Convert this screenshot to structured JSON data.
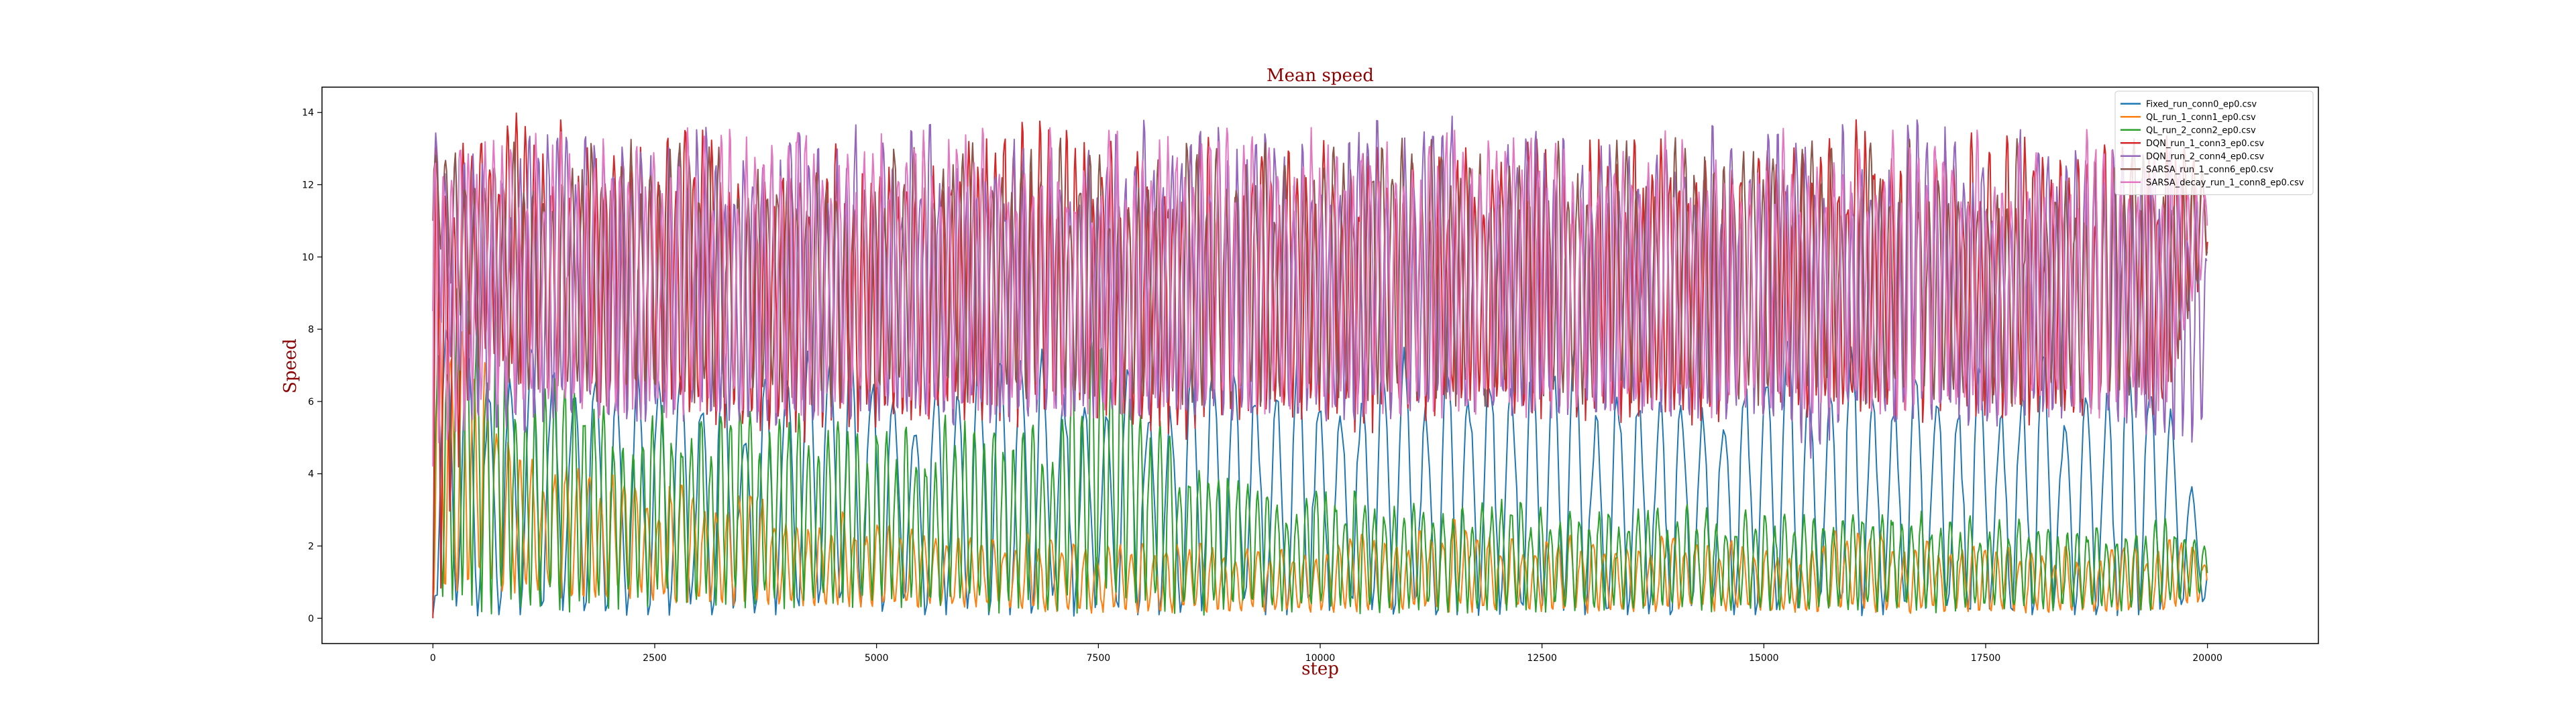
{
  "chart_data": {
    "type": "line",
    "title": "Mean speed",
    "xlabel": "step",
    "ylabel": "Speed",
    "xlim": [
      -1250,
      21250
    ],
    "ylim": [
      -0.7,
      14.7
    ],
    "xticks": [
      0,
      2500,
      5000,
      7500,
      10000,
      12500,
      15000,
      17500,
      20000
    ],
    "yticks": [
      0,
      2,
      4,
      6,
      8,
      10,
      12,
      14
    ],
    "grid": false,
    "legend_position": "top-right",
    "colors": {
      "title": "#8b0000",
      "axis_label": "#8b0000"
    },
    "series": [
      {
        "name": "Fixed_run_conn0_ep0.csv",
        "color": "#1f77b4",
        "approx_period_steps": 240,
        "x": [
          0,
          500,
          1000,
          1500,
          2000,
          2500,
          3000,
          3500,
          4000,
          4500,
          5000,
          5500,
          6000,
          6500,
          7000,
          7500,
          8000,
          8500,
          9000,
          9500,
          10000,
          10500,
          11000,
          11500,
          12000,
          12500,
          13000,
          13500,
          14000,
          14500,
          15000,
          15500,
          16000,
          16500,
          17000,
          17500,
          18000,
          18500,
          19000,
          19500,
          20000
        ],
        "max": [
          9.2,
          7.0,
          7.5,
          7.2,
          7.0,
          7.5,
          7.5,
          7.2,
          7.5,
          7.5,
          7.5,
          7.5,
          7.8,
          7.5,
          7.5,
          7.5,
          7.8,
          7.5,
          7.5,
          7.5,
          7.5,
          7.5,
          7.5,
          7.5,
          7.8,
          7.5,
          7.5,
          7.5,
          7.5,
          7.5,
          7.5,
          7.8,
          7.5,
          7.5,
          7.5,
          7.5,
          7.5,
          7.5,
          7.5,
          7.5,
          2.0
        ],
        "min": [
          0.1,
          0.1,
          0.1,
          0.1,
          0.1,
          0.1,
          0.1,
          0.1,
          0.1,
          0.1,
          0.1,
          0.1,
          0.1,
          0.1,
          0.1,
          0.1,
          0.1,
          0.1,
          0.1,
          0.1,
          0.1,
          0.1,
          0.1,
          0.1,
          0.1,
          0.1,
          0.1,
          0.1,
          0.1,
          0.1,
          0.1,
          0.1,
          0.1,
          0.1,
          0.1,
          0.1,
          0.1,
          0.1,
          0.1,
          0.1,
          0.5
        ]
      },
      {
        "name": "QL_run_1_conn1_ep0.csv",
        "color": "#ff7f0e",
        "approx_period_steps": 130,
        "x": [
          0,
          500,
          1000,
          1500,
          2000,
          2500,
          3000,
          3500,
          4000,
          4500,
          5000,
          5500,
          6000,
          6500,
          7000,
          7500,
          8000,
          8500,
          9000,
          9500,
          10000,
          10500,
          11000,
          11500,
          12000,
          12500,
          13000,
          13500,
          14000,
          14500,
          15000,
          15500,
          16000,
          16500,
          17000,
          17500,
          18000,
          18500,
          19000,
          19500,
          20000
        ],
        "max": [
          9.5,
          7.5,
          5.0,
          4.2,
          4.0,
          3.8,
          3.6,
          3.5,
          3.2,
          3.0,
          2.8,
          2.7,
          2.5,
          2.4,
          2.3,
          2.2,
          2.2,
          2.1,
          2.0,
          2.0,
          2.0,
          2.6,
          2.4,
          2.8,
          2.2,
          2.5,
          2.3,
          2.0,
          2.6,
          2.2,
          2.0,
          2.0,
          3.0,
          2.4,
          2.0,
          2.3,
          2.0,
          2.0,
          2.0,
          2.2,
          2.0
        ],
        "min": [
          0.4,
          0.8,
          0.8,
          0.6,
          0.6,
          0.5,
          0.5,
          0.4,
          0.4,
          0.4,
          0.3,
          0.3,
          0.3,
          0.3,
          0.2,
          0.2,
          0.2,
          0.2,
          0.2,
          0.2,
          0.2,
          0.2,
          0.2,
          0.2,
          0.2,
          0.2,
          0.2,
          0.2,
          0.2,
          0.2,
          0.2,
          0.2,
          0.2,
          0.2,
          0.2,
          0.2,
          0.2,
          0.2,
          0.2,
          0.2,
          0.5
        ]
      },
      {
        "name": "QL_run_2_conn2_ep0.csv",
        "color": "#2ca02c",
        "approx_period_steps": 110,
        "x": [
          0,
          500,
          1000,
          1500,
          2000,
          2500,
          3000,
          3500,
          4000,
          4500,
          5000,
          5500,
          6000,
          6500,
          7000,
          7500,
          8000,
          8500,
          9000,
          9500,
          10000,
          10500,
          11000,
          11500,
          12000,
          12500,
          13000,
          13500,
          14000,
          14500,
          15000,
          15500,
          16000,
          16500,
          17000,
          17500,
          18000,
          18500,
          19000,
          19500,
          20000
        ],
        "max": [
          9.0,
          9.5,
          7.0,
          6.5,
          6.2,
          6.0,
          6.0,
          5.8,
          6.5,
          5.5,
          5.6,
          5.4,
          5.8,
          5.5,
          5.2,
          9.3,
          6.0,
          5.0,
          4.2,
          3.6,
          3.8,
          3.5,
          3.2,
          3.0,
          3.3,
          3.2,
          3.0,
          3.0,
          3.2,
          3.0,
          3.0,
          3.2,
          3.0,
          3.0,
          3.0,
          2.8,
          3.0,
          2.8,
          2.8,
          2.8,
          2.0
        ],
        "min": [
          0.5,
          0.5,
          0.5,
          0.5,
          0.5,
          0.6,
          0.6,
          0.5,
          0.6,
          0.5,
          0.5,
          0.4,
          0.4,
          0.4,
          0.4,
          0.4,
          0.4,
          0.3,
          0.3,
          0.3,
          0.3,
          0.3,
          0.3,
          0.3,
          0.3,
          0.3,
          0.3,
          0.3,
          0.3,
          0.3,
          0.3,
          0.3,
          0.3,
          0.3,
          0.3,
          0.3,
          0.3,
          0.3,
          0.3,
          0.3,
          0.8
        ]
      },
      {
        "name": "DQN_run_1_conn3_ep0.csv",
        "color": "#d62728",
        "approx_period_steps": 100,
        "x": [
          0,
          500,
          1000,
          1500,
          2000,
          2500,
          3000,
          3500,
          4000,
          4500,
          5000,
          5500,
          6000,
          6500,
          7000,
          7500,
          8000,
          8500,
          9000,
          9500,
          10000,
          10500,
          11000,
          11500,
          12000,
          12500,
          13000,
          13500,
          14000,
          14500,
          15000,
          15500,
          16000,
          16500,
          17000,
          17500,
          18000,
          18500,
          19000,
          19500,
          20000
        ],
        "max": [
          13.9,
          13.3,
          14.1,
          13.8,
          13.6,
          13.5,
          13.5,
          13.6,
          13.4,
          13.4,
          13.3,
          13.5,
          13.6,
          14.1,
          13.6,
          13.3,
          13.5,
          13.4,
          13.5,
          13.4,
          13.6,
          13.4,
          13.5,
          13.4,
          13.5,
          13.4,
          13.4,
          13.5,
          13.4,
          13.4,
          13.5,
          13.4,
          14.0,
          13.8,
          13.5,
          13.4,
          13.3,
          13.5,
          13.4,
          13.4,
          12.9
        ],
        "min": [
          0.0,
          7.8,
          6.8,
          6.5,
          6.2,
          6.2,
          5.6,
          5.5,
          5.2,
          5.4,
          5.6,
          5.6,
          5.8,
          5.4,
          6.0,
          5.8,
          5.6,
          5.2,
          5.8,
          5.6,
          5.9,
          5.4,
          5.6,
          6.1,
          5.8,
          5.8,
          5.6,
          5.8,
          5.4,
          5.8,
          5.9,
          5.6,
          5.8,
          5.8,
          5.8,
          5.9,
          5.6,
          5.6,
          5.9,
          5.6,
          10.2
        ]
      },
      {
        "name": "DQN_run_2_conn4_ep0.csv",
        "color": "#9467bd",
        "approx_period_steps": 105,
        "x": [
          0,
          500,
          1000,
          1500,
          2000,
          2500,
          3000,
          3500,
          4000,
          4500,
          5000,
          5500,
          6000,
          6500,
          7000,
          7500,
          8000,
          8500,
          9000,
          9500,
          10000,
          10500,
          11000,
          11500,
          12000,
          12500,
          13000,
          13500,
          14000,
          14500,
          15000,
          15500,
          16000,
          16500,
          17000,
          17500,
          18000,
          18500,
          19000,
          19500,
          20000
        ],
        "max": [
          13.6,
          13.4,
          13.5,
          13.7,
          13.8,
          13.6,
          13.6,
          13.5,
          13.7,
          13.6,
          13.7,
          13.6,
          13.9,
          13.6,
          13.7,
          13.6,
          14.0,
          13.6,
          13.7,
          13.8,
          13.7,
          13.8,
          13.7,
          13.9,
          13.6,
          13.8,
          13.6,
          13.7,
          13.8,
          13.6,
          13.7,
          13.6,
          13.8,
          13.7,
          13.9,
          13.6,
          13.5,
          13.5,
          13.5,
          13.4,
          11.0
        ],
        "min": [
          8.5,
          5.5,
          5.2,
          5.6,
          5.5,
          5.4,
          5.6,
          5.5,
          5.4,
          5.6,
          5.5,
          5.6,
          5.4,
          5.5,
          5.8,
          5.6,
          5.5,
          5.6,
          5.5,
          5.8,
          5.6,
          5.5,
          5.8,
          5.6,
          5.7,
          5.6,
          5.5,
          5.8,
          5.6,
          5.5,
          5.8,
          4.4,
          5.6,
          5.5,
          5.6,
          5.4,
          5.5,
          5.6,
          5.5,
          5.0,
          4.9
        ]
      },
      {
        "name": "SARSA_run_1_conn6_ep0.csv",
        "color": "#8c564b",
        "approx_period_steps": 110,
        "x": [
          0,
          500,
          1000,
          1500,
          2000,
          2500,
          3000,
          3500,
          4000,
          4500,
          5000,
          5500,
          6000,
          6500,
          7000,
          7500,
          8000,
          8500,
          9000,
          9500,
          10000,
          10500,
          11000,
          11500,
          12000,
          12500,
          13000,
          13500,
          14000,
          14500,
          15000,
          15500,
          16000,
          16500,
          17000,
          17500,
          18000,
          18500,
          19000,
          19500,
          20000
        ],
        "max": [
          13.0,
          13.2,
          13.3,
          13.4,
          13.3,
          13.2,
          13.3,
          13.2,
          13.3,
          13.2,
          13.3,
          13.2,
          13.3,
          13.2,
          13.3,
          13.2,
          13.3,
          13.2,
          13.3,
          13.2,
          13.3,
          13.2,
          13.3,
          13.2,
          13.3,
          13.2,
          13.3,
          13.2,
          13.3,
          13.2,
          13.3,
          13.2,
          13.3,
          13.2,
          13.3,
          13.2,
          13.3,
          13.2,
          13.3,
          13.2,
          12.5
        ],
        "min": [
          11.0,
          6.8,
          6.4,
          6.4,
          6.2,
          6.2,
          6.2,
          6.2,
          6.2,
          6.2,
          6.2,
          6.2,
          6.2,
          6.2,
          6.2,
          6.2,
          6.2,
          6.2,
          6.2,
          6.2,
          6.2,
          6.2,
          6.2,
          6.2,
          6.2,
          6.2,
          6.2,
          6.2,
          6.2,
          6.2,
          6.2,
          6.2,
          6.2,
          6.2,
          6.2,
          6.2,
          6.2,
          6.2,
          6.2,
          6.2,
          10.0
        ]
      },
      {
        "name": "SARSA_decay_run_1_conn8_ep0.csv",
        "color": "#e377c2",
        "approx_period_steps": 95,
        "x": [
          0,
          500,
          1000,
          1500,
          2000,
          2500,
          3000,
          3500,
          4000,
          4500,
          5000,
          5500,
          6000,
          6500,
          7000,
          7500,
          8000,
          8500,
          9000,
          9500,
          10000,
          10500,
          11000,
          11500,
          12000,
          12500,
          13000,
          13500,
          14000,
          14500,
          15000,
          15500,
          16000,
          16500,
          17000,
          17500,
          18000,
          18500,
          19000,
          19500,
          20000
        ],
        "max": [
          13.6,
          13.5,
          13.6,
          13.5,
          13.6,
          13.5,
          13.6,
          13.5,
          13.6,
          13.5,
          13.6,
          13.5,
          13.6,
          13.5,
          13.6,
          13.5,
          13.6,
          13.5,
          13.6,
          13.5,
          13.6,
          13.5,
          13.6,
          13.5,
          13.6,
          13.5,
          13.6,
          13.5,
          13.6,
          13.5,
          13.6,
          13.5,
          13.6,
          13.5,
          13.6,
          13.5,
          13.6,
          13.5,
          13.6,
          13.5,
          12.0
        ],
        "min": [
          4.2,
          6.0,
          6.0,
          5.8,
          6.0,
          5.9,
          6.0,
          5.9,
          6.0,
          5.9,
          6.0,
          5.9,
          6.0,
          5.9,
          6.0,
          5.9,
          6.0,
          5.9,
          6.0,
          5.9,
          6.0,
          5.9,
          6.0,
          5.9,
          6.0,
          5.9,
          6.0,
          5.9,
          6.0,
          5.9,
          6.0,
          5.9,
          6.0,
          5.9,
          6.0,
          5.9,
          6.0,
          5.9,
          6.0,
          5.9,
          10.0
        ]
      }
    ]
  }
}
